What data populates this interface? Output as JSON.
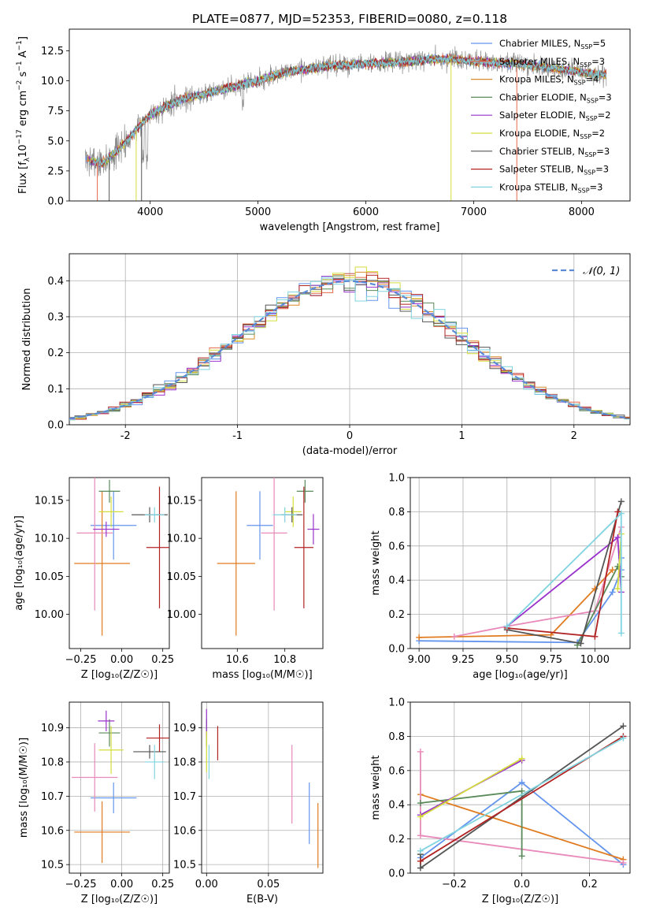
{
  "chart_data": [
    {
      "id": "spectrum",
      "type": "line",
      "title": "PLATE=0877, MJD=52353, FIBERID=0080, z=0.118",
      "xlabel": "wavelength [Angstrom, rest frame]",
      "ylabel_parts": [
        "Flux [f",
        "λ",
        "10",
        "−17",
        " erg cm",
        "−2",
        " s",
        "−1",
        " A",
        "−1",
        "]"
      ],
      "xlim": [
        3250,
        8450
      ],
      "ylim": [
        0,
        14.3
      ],
      "xticks": [
        4000,
        5000,
        6000,
        7000,
        8000
      ],
      "yticks": [
        0.0,
        2.5,
        5.0,
        7.5,
        10.0,
        12.5
      ],
      "legend_placement": "upper-right",
      "series": [
        {
          "label": "Chabrier MILES, N",
          "nssp": "5",
          "color": "#6495ed"
        },
        {
          "label": "Salpeter MILES, N",
          "nssp": "3",
          "color": "#e8674b"
        },
        {
          "label": "Kroupa MILES, N",
          "nssp": "4",
          "color": "#d98c2b"
        },
        {
          "label": "Chabrier ELODIE, N",
          "nssp": "3",
          "color": "#5a8a5a"
        },
        {
          "label": "Salpeter ELODIE, N",
          "nssp": "2",
          "color": "#9932cc"
        },
        {
          "label": "Kroupa ELODIE, N",
          "nssp": "2",
          "color": "#d4dd3c"
        },
        {
          "label": "Chabrier STELIB, N",
          "nssp": "3",
          "color": "#555555"
        },
        {
          "label": "Salpeter STELIB, N",
          "nssp": "3",
          "color": "#b22222"
        },
        {
          "label": "Kroupa STELIB, N",
          "nssp": "3",
          "color": "#80d4e0"
        }
      ],
      "continuum_nodes": {
        "x": [
          3400,
          3550,
          3700,
          3850,
          4000,
          4150,
          4300,
          4450,
          4600,
          4800,
          5000,
          5200,
          5400,
          5600,
          5800,
          6000,
          6200,
          6400,
          6600,
          6800,
          7000,
          7200,
          7400,
          7600,
          7800,
          8000,
          8200
        ],
        "y": [
          3.5,
          3.1,
          4.2,
          5.7,
          7.2,
          7.9,
          8.5,
          8.8,
          9.1,
          9.6,
          10.0,
          10.6,
          10.9,
          11.2,
          11.3,
          11.4,
          11.5,
          11.6,
          11.8,
          11.8,
          11.6,
          11.5,
          11.4,
          11.2,
          11.0,
          10.7,
          10.5
        ]
      }
    },
    {
      "id": "residuals",
      "type": "histogram",
      "xlabel": "(data-model)/error",
      "ylabel": "Normed distribution",
      "xlim": [
        -2.5,
        2.5
      ],
      "ylim": [
        0,
        0.475
      ],
      "xticks": [
        -2,
        -1,
        0,
        1,
        2
      ],
      "yticks": [
        0.0,
        0.1,
        0.2,
        0.3,
        0.4
      ],
      "grid": true,
      "legend_label": "𝒩(0, 1)",
      "legend_placement": "upper-right",
      "gaussian_color": "#5b8bd6",
      "bin_width": 0.1
    },
    {
      "id": "age-vs-Z",
      "type": "errorbar",
      "xlabel": "Z [log₁₀(Z/Z☉)]",
      "ylabel": "age  [log₁₀(age/yr)]",
      "xlim": [
        -0.32,
        0.29
      ],
      "ylim": [
        9.955,
        10.18
      ],
      "xticks": [
        -0.25,
        0.0,
        0.25
      ],
      "xtick_labels": [
        "−0.25",
        "0.00",
        "0.25"
      ],
      "yticks": [
        10.0,
        10.05,
        10.1,
        10.15
      ],
      "ytick_labels": [
        "10.00",
        "10.05",
        "10.10",
        "10.15"
      ],
      "points": [
        {
          "x": -0.05,
          "y": 10.117,
          "xerr": 0.14,
          "yerr": 0.045,
          "color": "#6495ed"
        },
        {
          "x": -0.12,
          "y": 10.067,
          "xerr": 0.17,
          "yerr": 0.095,
          "color": "#e07b1f"
        },
        {
          "x": -0.165,
          "y": 10.107,
          "xerr": 0.11,
          "yerr": 0.102,
          "color": "#e88aba"
        },
        {
          "x": -0.075,
          "y": 10.162,
          "xerr": 0.065,
          "yerr": 0.015,
          "color": "#5a8a5a"
        },
        {
          "x": -0.095,
          "y": 10.112,
          "xerr": 0.08,
          "yerr": 0.01,
          "color": "#9932cc"
        },
        {
          "x": -0.065,
          "y": 10.135,
          "xerr": 0.075,
          "yerr": 0.02,
          "color": "#d4dd3c"
        },
        {
          "x": 0.17,
          "y": 10.131,
          "xerr": 0.11,
          "yerr": 0.01,
          "color": "#555555"
        },
        {
          "x": 0.23,
          "y": 10.088,
          "xerr": 0.08,
          "yerr": 0.08,
          "color": "#b22222"
        },
        {
          "x": 0.2,
          "y": 10.131,
          "xerr": 0.06,
          "yerr": 0.01,
          "color": "#80d4e0"
        }
      ]
    },
    {
      "id": "age-vs-mass",
      "type": "errorbar",
      "xlabel": "mass [log₁₀(M/M☉)]",
      "ylabel": "",
      "xlim": [
        10.45,
        10.96
      ],
      "ylim": [
        9.955,
        10.18
      ],
      "xticks": [
        10.6,
        10.8
      ],
      "xtick_labels": [
        "10.6",
        "10.8"
      ],
      "yticks": [
        10.0,
        10.05,
        10.1,
        10.15
      ],
      "ytick_labels": [
        "10.00",
        "10.05",
        "10.10",
        "10.15"
      ],
      "points": [
        {
          "x": 10.695,
          "y": 10.117,
          "xerr": 0.055,
          "yerr": 0.045,
          "color": "#6495ed"
        },
        {
          "x": 10.595,
          "y": 10.067,
          "xerr": 0.08,
          "yerr": 0.095,
          "color": "#e07b1f"
        },
        {
          "x": 10.755,
          "y": 10.107,
          "xerr": 0.055,
          "yerr": 0.102,
          "color": "#e88aba"
        },
        {
          "x": 10.885,
          "y": 10.162,
          "xerr": 0.035,
          "yerr": 0.015,
          "color": "#5a8a5a"
        },
        {
          "x": 10.92,
          "y": 10.112,
          "xerr": 0.025,
          "yerr": 0.02,
          "color": "#9932cc"
        },
        {
          "x": 10.835,
          "y": 10.135,
          "xerr": 0.035,
          "yerr": 0.02,
          "color": "#d4dd3c"
        },
        {
          "x": 10.83,
          "y": 10.131,
          "xerr": 0.045,
          "yerr": 0.01,
          "color": "#555555"
        },
        {
          "x": 10.88,
          "y": 10.088,
          "xerr": 0.04,
          "yerr": 0.08,
          "color": "#b22222"
        },
        {
          "x": 10.8,
          "y": 10.131,
          "xerr": 0.05,
          "yerr": 0.01,
          "color": "#80d4e0"
        }
      ]
    },
    {
      "id": "weight-vs-age",
      "type": "line",
      "xlabel": "age  [log₁₀(age/yr)]",
      "ylabel": "mass weight",
      "xlim": [
        8.95,
        10.2
      ],
      "ylim": [
        0,
        1
      ],
      "xticks": [
        9.0,
        9.25,
        9.5,
        9.75,
        10.0
      ],
      "xtick_labels": [
        "9.00",
        "9.25",
        "9.50",
        "9.75",
        "10.00"
      ],
      "yticks": [
        0.0,
        0.2,
        0.4,
        0.6,
        0.8,
        1.0
      ],
      "ytick_labels": [
        "0.0",
        "0.2",
        "0.4",
        "0.6",
        "0.8",
        "1.0"
      ],
      "grid": true,
      "series": [
        {
          "color": "#6495ed",
          "x": [
            9.0,
            9.9,
            10.1,
            10.15,
            10.15
          ],
          "y": [
            0.045,
            0.035,
            0.33,
            0.46,
            0.53
          ]
        },
        {
          "color": "#e07b1f",
          "x": [
            9.0,
            9.75,
            10.0,
            10.1
          ],
          "y": [
            0.065,
            0.08,
            0.35,
            0.46
          ]
        },
        {
          "color": "#e88aba",
          "x": [
            9.2,
            9.5,
            10.0,
            10.15
          ],
          "y": [
            0.07,
            0.13,
            0.22,
            0.71
          ]
        },
        {
          "color": "#5a8a5a",
          "x": [
            9.9,
            10.13,
            10.15
          ],
          "y": [
            0.02,
            0.48,
            0.42
          ]
        },
        {
          "color": "#9932cc",
          "x": [
            9.5,
            10.13,
            10.15
          ],
          "y": [
            0.13,
            0.65,
            0.33
          ]
        },
        {
          "color": "#d4dd3c",
          "x": [
            10.13,
            10.15
          ],
          "y": [
            0.35,
            0.67
          ]
        },
        {
          "color": "#555555",
          "x": [
            9.5,
            9.92,
            10.15
          ],
          "y": [
            0.11,
            0.03,
            0.86
          ]
        },
        {
          "color": "#b22222",
          "x": [
            9.5,
            10.0,
            10.13
          ],
          "y": [
            0.12,
            0.07,
            0.8
          ]
        },
        {
          "color": "#80d4e0",
          "x": [
            9.5,
            10.15,
            10.15
          ],
          "y": [
            0.13,
            0.79,
            0.09
          ]
        }
      ]
    },
    {
      "id": "mass-vs-Z",
      "type": "errorbar",
      "xlabel": "Z [log₁₀(Z/Z☉)]",
      "ylabel": "mass [log₁₀(M/M☉)]",
      "xlim": [
        -0.32,
        0.29
      ],
      "ylim": [
        10.475,
        10.975
      ],
      "xticks": [
        -0.25,
        0.0,
        0.25
      ],
      "xtick_labels": [
        "−0.25",
        "0.00",
        "0.25"
      ],
      "yticks": [
        10.5,
        10.6,
        10.7,
        10.8,
        10.9
      ],
      "ytick_labels": [
        "10.5",
        "10.6",
        "10.7",
        "10.8",
        "10.9"
      ],
      "grid": true,
      "points": [
        {
          "x": -0.05,
          "y": 10.695,
          "xerr": 0.14,
          "yerr": 0.045,
          "color": "#6495ed"
        },
        {
          "x": -0.12,
          "y": 10.595,
          "xerr": 0.17,
          "yerr": 0.09,
          "color": "#e07b1f"
        },
        {
          "x": -0.165,
          "y": 10.755,
          "xerr": 0.14,
          "yerr": 0.1,
          "color": "#e88aba"
        },
        {
          "x": -0.075,
          "y": 10.885,
          "xerr": 0.065,
          "yerr": 0.04,
          "color": "#5a8a5a"
        },
        {
          "x": -0.095,
          "y": 10.92,
          "xerr": 0.05,
          "yerr": 0.03,
          "color": "#9932cc"
        },
        {
          "x": -0.065,
          "y": 10.835,
          "xerr": 0.075,
          "yerr": 0.07,
          "color": "#d4dd3c"
        },
        {
          "x": 0.17,
          "y": 10.83,
          "xerr": 0.1,
          "yerr": 0.02,
          "color": "#555555"
        },
        {
          "x": 0.23,
          "y": 10.87,
          "xerr": 0.08,
          "yerr": 0.04,
          "color": "#b22222"
        },
        {
          "x": 0.2,
          "y": 10.8,
          "xerr": 0.06,
          "yerr": 0.05,
          "color": "#80d4e0"
        }
      ]
    },
    {
      "id": "mass-vs-ebv",
      "type": "errorbar",
      "xlabel": "E(B-V)",
      "ylabel": "",
      "xlim": [
        -0.004,
        0.094
      ],
      "ylim": [
        10.475,
        10.975
      ],
      "xticks": [
        0.0,
        0.05
      ],
      "xtick_labels": [
        "0.00",
        "0.05"
      ],
      "yticks": [
        10.5,
        10.6,
        10.7,
        10.8,
        10.9
      ],
      "ytick_labels": [
        "10.5",
        "10.6",
        "10.7",
        "10.8",
        "10.9"
      ],
      "grid": true,
      "points": [
        {
          "x": 0.083,
          "y": 10.65,
          "xerr": 0,
          "yerr": 0.09,
          "color": "#6495ed"
        },
        {
          "x": 0.09,
          "y": 10.585,
          "xerr": 0,
          "yerr": 0.095,
          "color": "#e07b1f"
        },
        {
          "x": 0.069,
          "y": 10.735,
          "xerr": 0,
          "yerr": 0.115,
          "color": "#e88aba"
        },
        {
          "x": 0.0,
          "y": 10.885,
          "xerr": 0,
          "yerr": 0.04,
          "color": "#5a8a5a"
        },
        {
          "x": 0.0,
          "y": 10.915,
          "xerr": 0,
          "yerr": 0.04,
          "color": "#9932cc"
        },
        {
          "x": 0.0,
          "y": 10.83,
          "xerr": 0,
          "yerr": 0.06,
          "color": "#d4dd3c"
        },
        {
          "x": 0.002,
          "y": 10.8,
          "xerr": 0,
          "yerr": 0.05,
          "color": "#80d4e0"
        },
        {
          "x": 0.009,
          "y": 10.855,
          "xerr": 0,
          "yerr": 0.05,
          "color": "#b22222"
        }
      ]
    },
    {
      "id": "weight-vs-Z",
      "type": "line",
      "xlabel": "Z [log₁₀(Z/Z☉)]",
      "ylabel": "mass weight",
      "xlim": [
        -0.33,
        0.32
      ],
      "ylim": [
        0,
        1
      ],
      "xticks": [
        -0.2,
        0.0,
        0.2
      ],
      "xtick_labels": [
        "−0.2",
        "0.0",
        "0.2"
      ],
      "yticks": [
        0.0,
        0.2,
        0.4,
        0.6,
        0.8,
        1.0
      ],
      "ytick_labels": [
        "0.0",
        "0.2",
        "0.4",
        "0.6",
        "0.8",
        "1.0"
      ],
      "grid": true,
      "series": [
        {
          "color": "#6495ed",
          "x": [
            -0.3,
            0.0,
            0.3
          ],
          "y": [
            0.09,
            0.53,
            0.05
          ]
        },
        {
          "color": "#e07b1f",
          "x": [
            -0.3,
            0.3
          ],
          "y": [
            0.46,
            0.08
          ]
        },
        {
          "color": "#e88aba",
          "x": [
            -0.3,
            -0.3,
            0.3
          ],
          "y": [
            0.71,
            0.22,
            0.06
          ]
        },
        {
          "color": "#5a8a5a",
          "x": [
            -0.3,
            0.0,
            0.0
          ],
          "y": [
            0.41,
            0.48,
            0.1
          ]
        },
        {
          "color": "#9932cc",
          "x": [
            -0.3,
            0.0
          ],
          "y": [
            0.34,
            0.66
          ]
        },
        {
          "color": "#d4dd3c",
          "x": [
            -0.3,
            0.0
          ],
          "y": [
            0.33,
            0.67
          ]
        },
        {
          "color": "#555555",
          "x": [
            -0.3,
            -0.3,
            0.3
          ],
          "y": [
            0.11,
            0.03,
            0.86
          ]
        },
        {
          "color": "#b22222",
          "x": [
            -0.3,
            0.3
          ],
          "y": [
            0.07,
            0.8
          ]
        },
        {
          "color": "#80d4e0",
          "x": [
            -0.3,
            0.3
          ],
          "y": [
            0.13,
            0.79
          ]
        }
      ]
    }
  ]
}
